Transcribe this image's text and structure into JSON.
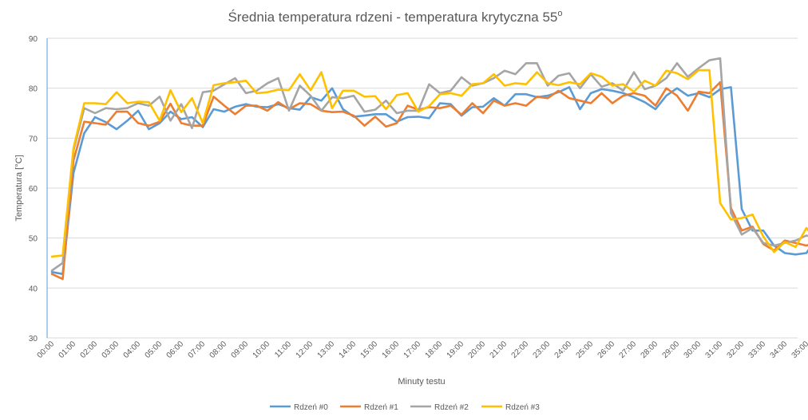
{
  "chart_data": {
    "type": "line",
    "title": "Średnia temperatura rdzeni - temperatura krytyczna 55",
    "title_superscript": "o",
    "xlabel": "Minuty testu",
    "ylabel": "Temperatura [°C]",
    "ylim": [
      30,
      90
    ],
    "yticks": [
      30,
      40,
      50,
      60,
      70,
      80,
      90
    ],
    "xticks": [
      "00:00",
      "01:00",
      "02:00",
      "03:00",
      "04:00",
      "05:00",
      "06:00",
      "07:00",
      "08:00",
      "09:00",
      "10:00",
      "11:00",
      "12:00",
      "13:00",
      "14:00",
      "15:00",
      "16:00",
      "17:00",
      "18:00",
      "19:00",
      "20:00",
      "21:00",
      "22:00",
      "23:00",
      "24:00",
      "25:00",
      "26:00",
      "27:00",
      "28:00",
      "29:00",
      "30:00",
      "31:00",
      "32:00",
      "33:00",
      "34:00",
      "35:00"
    ],
    "points_per_minute": 2,
    "grid": "horizontal",
    "legend_position": "bottom",
    "series": [
      {
        "name": "Rdzeń #0",
        "color": "#5B9BD5",
        "values": [
          43.2,
          42.8,
          63,
          71,
          74.2,
          73.2,
          71.8,
          73.5,
          75.5,
          71.8,
          73,
          75.3,
          73.8,
          74.2,
          72.2,
          75.8,
          75.3,
          76.3,
          76.8,
          76.3,
          76.2,
          76.8,
          76,
          75.7,
          78.2,
          77.5,
          80,
          75.8,
          74.3,
          74.5,
          74.8,
          74.8,
          73.3,
          74.2,
          74.3,
          74,
          77,
          76.8,
          74.5,
          76.2,
          76.3,
          78,
          76.5,
          78.8,
          78.8,
          78.2,
          78.5,
          79.2,
          80.2,
          75.8,
          79,
          79.8,
          79.5,
          79,
          78.2,
          77.2,
          75.8,
          78.5,
          80,
          78.5,
          79,
          78.2,
          79.8,
          80.2,
          55.8,
          51.5,
          51.5,
          48.5,
          47,
          46.7,
          47,
          50,
          49.5,
          46.3
        ]
      },
      {
        "name": "Rdzeń #1",
        "color": "#ED7D31",
        "values": [
          42.8,
          41.8,
          65.5,
          73.3,
          73,
          72.7,
          75.3,
          75.3,
          73,
          72.5,
          73.3,
          76.9,
          73,
          72.5,
          72.5,
          78.3,
          76.5,
          74.8,
          76.5,
          76.5,
          75.5,
          77.2,
          75.8,
          77,
          76.8,
          75.5,
          75.2,
          75.3,
          74.5,
          72.5,
          74.3,
          72.3,
          73,
          76.5,
          75.7,
          76.2,
          76,
          76.5,
          74.7,
          77,
          75,
          77.5,
          76.5,
          77,
          76.5,
          78.3,
          78,
          79.5,
          78,
          77.5,
          77,
          79,
          77,
          78.5,
          79,
          78.5,
          76.5,
          80,
          78.5,
          75.5,
          79.3,
          79,
          81.2,
          56,
          51.5,
          52.3,
          48.8,
          47.5,
          49.5,
          49,
          48.5,
          49.2,
          48.5,
          47.5
        ]
      },
      {
        "name": "Rdzeń #2",
        "color": "#A5A5A5",
        "values": [
          43.5,
          45,
          67.5,
          76,
          75,
          76,
          75.8,
          76,
          77,
          76.5,
          78.3,
          73.5,
          76.8,
          72,
          79.2,
          79.5,
          80.8,
          82,
          79,
          79.5,
          81,
          82,
          75.5,
          80.5,
          78.5,
          75.5,
          78.2,
          78,
          78.5,
          75.3,
          75.7,
          77.5,
          75,
          75.5,
          75.5,
          80.8,
          79,
          79.5,
          82.2,
          80.5,
          81,
          82,
          83.5,
          82.8,
          85,
          85,
          80.5,
          82.5,
          83,
          80,
          82.8,
          80.3,
          81,
          79.5,
          83.2,
          79.8,
          80.5,
          82,
          85,
          82.3,
          84,
          85.6,
          86,
          55,
          50.7,
          52,
          49,
          48.5,
          49,
          49.5,
          50.5,
          49.8,
          47
        ]
      },
      {
        "name": "Rdzeń #3",
        "color": "#FFC000",
        "values": [
          46.3,
          46.5,
          68,
          77,
          77,
          76.8,
          79.2,
          77,
          77.3,
          77.2,
          73.5,
          79.6,
          75.2,
          78,
          73,
          80.6,
          81,
          81.2,
          81.5,
          79,
          79.2,
          79.7,
          79.6,
          82.8,
          79.6,
          83.2,
          76,
          79.5,
          79.5,
          78.3,
          78.4,
          75.8,
          78.6,
          79,
          75.3,
          76.4,
          78.8,
          79,
          78.5,
          80.8,
          81,
          82.8,
          80.5,
          81,
          80.8,
          83.2,
          81,
          80.6,
          81.2,
          80.8,
          83,
          82.3,
          80.5,
          80.8,
          79.3,
          81.5,
          80.5,
          83.5,
          83,
          81.8,
          83.6,
          83.6,
          57,
          53.7,
          54,
          54.7,
          50.3,
          47.2,
          49.2,
          48.2,
          52,
          49.4
        ]
      }
    ]
  }
}
